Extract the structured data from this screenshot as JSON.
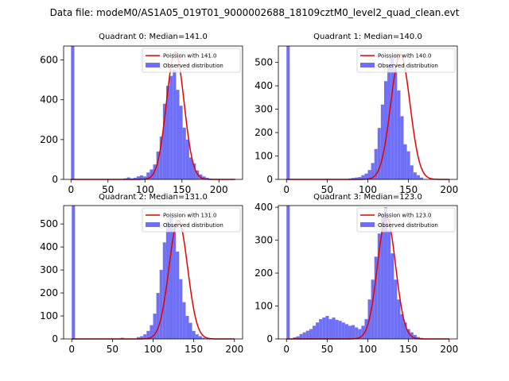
{
  "chart_data": {
    "suptitle": "Data file: modeM0/AS1A05_019T01_9000002688_18109cztM0_level2_quad_clean.evt",
    "colors": {
      "hist": "#7070f5",
      "curve": "#e60000",
      "axis": "#000000"
    },
    "panels": [
      {
        "type": "bar+line",
        "title": "Quadrant 0: Median=141.0",
        "xlim": [
          -10,
          232
        ],
        "ylim": [
          0,
          670
        ],
        "xticks": [
          0,
          50,
          100,
          150,
          200
        ],
        "yticks": [
          0,
          200,
          400,
          600
        ],
        "legend": {
          "placement": "top-right",
          "curve_label": "Poission with 141.0",
          "hist_label": "Observed distribution"
        },
        "curve": {
          "mu": 141,
          "sigma": 11.9,
          "amp": 640,
          "x_range": [
            0,
            222
          ]
        },
        "bins": {
          "start": 0,
          "width": 4.44,
          "counts": [
            670,
            0,
            0,
            0,
            0,
            0,
            0,
            0,
            0,
            0,
            0,
            0,
            0,
            0,
            0,
            0,
            5,
            10,
            5,
            8,
            15,
            20,
            15,
            35,
            50,
            75,
            140,
            215,
            380,
            470,
            520,
            550,
            450,
            370,
            260,
            200,
            110,
            80,
            45,
            25,
            15,
            8,
            4,
            0,
            0,
            0
          ]
        }
      },
      {
        "type": "bar+line",
        "title": "Quadrant 1: Median=140.0",
        "xlim": [
          -10,
          210
        ],
        "ylim": [
          0,
          570
        ],
        "xticks": [
          0,
          50,
          100,
          150,
          200
        ],
        "yticks": [
          0,
          100,
          200,
          300,
          400,
          500
        ],
        "legend": {
          "placement": "top-right",
          "curve_label": "Poission with 140.0",
          "hist_label": "Observed distribution"
        },
        "curve": {
          "mu": 140,
          "sigma": 11.8,
          "amp": 535,
          "x_range": [
            0,
            200
          ]
        },
        "bins": {
          "start": 0,
          "width": 4,
          "counts": [
            570,
            0,
            0,
            0,
            0,
            0,
            0,
            0,
            0,
            0,
            0,
            0,
            0,
            0,
            0,
            0,
            0,
            0,
            0,
            4,
            6,
            8,
            10,
            18,
            25,
            40,
            70,
            130,
            220,
            320,
            420,
            490,
            520,
            470,
            380,
            270,
            150,
            120,
            60,
            30,
            18,
            8
          ]
        }
      },
      {
        "type": "bar+line",
        "title": "Quadrant 2: Median=131.0",
        "xlim": [
          -10,
          210
        ],
        "ylim": [
          0,
          580
        ],
        "xticks": [
          0,
          50,
          100,
          150,
          200
        ],
        "yticks": [
          0,
          100,
          200,
          300,
          400,
          500
        ],
        "legend": {
          "placement": "top-right",
          "curve_label": "Poission with 131.0",
          "hist_label": "Observed distribution"
        },
        "curve": {
          "mu": 131,
          "sigma": 11.4,
          "amp": 515,
          "x_range": [
            0,
            200
          ]
        },
        "bins": {
          "start": 0,
          "width": 4,
          "counts": [
            580,
            0,
            0,
            0,
            0,
            0,
            0,
            0,
            0,
            0,
            0,
            0,
            0,
            0,
            0,
            5,
            0,
            0,
            0,
            0,
            8,
            12,
            20,
            35,
            60,
            110,
            200,
            300,
            420,
            510,
            530,
            480,
            380,
            260,
            160,
            100,
            70,
            35,
            20,
            12,
            5,
            2
          ]
        }
      },
      {
        "type": "bar+line",
        "title": "Quadrant 3: Median=123.0",
        "xlim": [
          -10,
          210
        ],
        "ylim": [
          0,
          405
        ],
        "xticks": [
          0,
          50,
          100,
          150,
          200
        ],
        "yticks": [
          0,
          100,
          200,
          300,
          400
        ],
        "legend": {
          "placement": "top-right",
          "curve_label": "Poission with 123.0",
          "hist_label": "Observed distribution"
        },
        "curve": {
          "mu": 123,
          "sigma": 11.1,
          "amp": 370,
          "x_range": [
            0,
            200
          ]
        },
        "bins": {
          "start": 0,
          "width": 4,
          "counts": [
            405,
            0,
            5,
            8,
            15,
            20,
            25,
            30,
            40,
            50,
            60,
            65,
            70,
            60,
            65,
            58,
            55,
            50,
            45,
            40,
            42,
            35,
            30,
            40,
            60,
            120,
            180,
            250,
            320,
            380,
            400,
            330,
            260,
            180,
            120,
            75,
            50,
            30,
            20,
            12,
            6,
            3
          ]
        }
      }
    ]
  }
}
